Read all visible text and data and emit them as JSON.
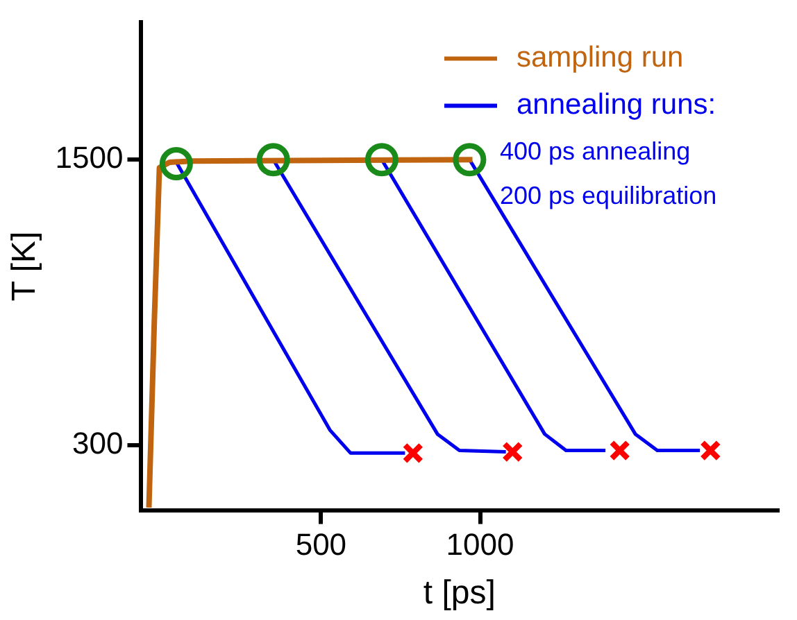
{
  "chart_data": {
    "type": "line",
    "xlabel": "t [ps]",
    "ylabel": "T [K]",
    "xlim": [
      -65,
      1935
    ],
    "ylim": [
      26,
      2077
    ],
    "xticks": [
      500,
      1000
    ],
    "yticks": [
      300,
      1500
    ],
    "grid": false,
    "legend": "top right",
    "annotations": [
      "400 ps annealing",
      "200 ps equilibration"
    ],
    "series": [
      {
        "name": "sampling run",
        "color": "#c0640f",
        "x": [
          -41,
          -24,
          -8,
          24,
          93,
          976
        ],
        "values": [
          37,
          820,
          1466,
          1489,
          1494,
          1500
        ]
      },
      {
        "name": "annealing runs:",
        "color": "#0000ee",
        "x": [
          45,
          528,
          593,
          764
        ],
        "values": [
          1490,
          363,
          266,
          266
        ]
      },
      {
        "color": "#0000ee",
        "x": [
          350,
          866,
          935,
          1081
        ],
        "values": [
          1500,
          346,
          277,
          271
        ]
      },
      {
        "color": "#0000ee",
        "x": [
          691,
          1203,
          1270,
          1394
        ],
        "values": [
          1500,
          346,
          277,
          277
        ]
      },
      {
        "color": "#0000ee",
        "x": [
          967,
          1488,
          1557,
          1691
        ],
        "values": [
          1500,
          346,
          277,
          277
        ]
      },
      {
        "type": "scatter",
        "marker": "circle",
        "color": "#1a8a1a",
        "x": [
          45,
          350,
          691,
          967
        ],
        "values": [
          1483,
          1500,
          1500,
          1500
        ]
      },
      {
        "type": "scatter",
        "marker": "cross",
        "color": "#ff0000",
        "x": [
          789,
          1102,
          1439,
          1724
        ],
        "values": [
          266,
          271,
          277,
          277
        ]
      }
    ]
  }
}
